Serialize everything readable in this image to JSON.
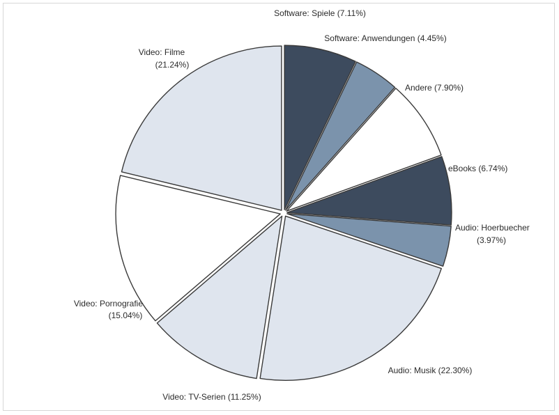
{
  "chart_data": {
    "type": "pie",
    "slices": [
      {
        "label": "Video: Filme",
        "value_text": "(21.24%)",
        "value": 21.24,
        "color": "#dfe5ee"
      },
      {
        "label": "Software: Spiele (7.11%)",
        "value_text": "",
        "value": 7.11,
        "color": "#3d4b5e"
      },
      {
        "label": "Software: Anwendungen (4.45%)",
        "value_text": "",
        "value": 4.45,
        "color": "#7b93ac"
      },
      {
        "label": "Andere (7.90%)",
        "value_text": "",
        "value": 7.9,
        "color": "#ffffff"
      },
      {
        "label": "eBooks (6.74%)",
        "value_text": "",
        "value": 6.74,
        "color": "#3d4b5e"
      },
      {
        "label": "Audio: Hoerbuecher",
        "value_text": "(3.97%)",
        "value": 3.97,
        "color": "#7b93ac"
      },
      {
        "label": "Audio: Musik (22.30%)",
        "value_text": "",
        "value": 22.3,
        "color": "#dfe5ee"
      },
      {
        "label": "Video: TV-Serien (11.25%)",
        "value_text": "",
        "value": 11.25,
        "color": "#dfe5ee"
      },
      {
        "label": "Video: Pornografie",
        "value_text": "(15.04%)",
        "value": 15.04,
        "color": "#ffffff"
      }
    ]
  }
}
